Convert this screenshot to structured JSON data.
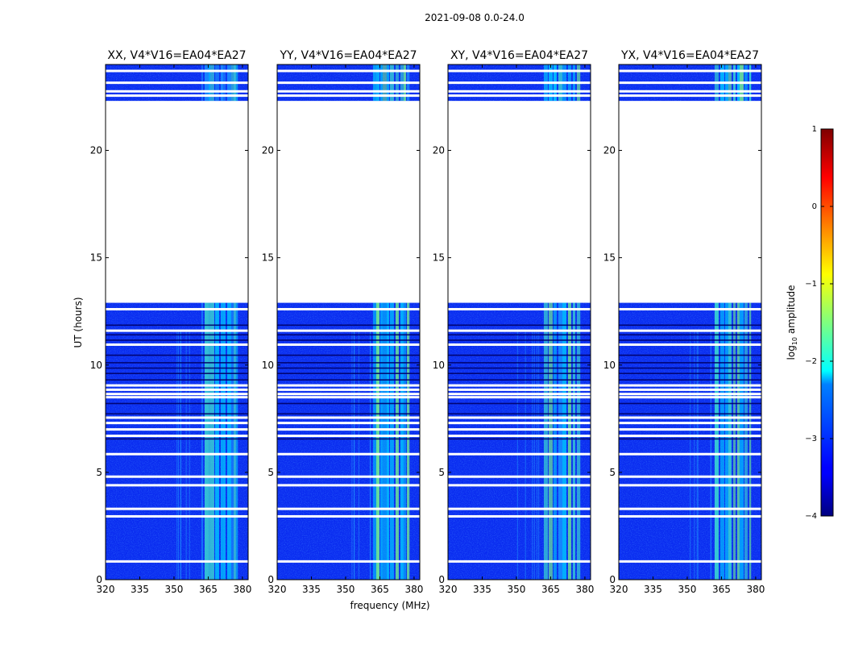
{
  "figure": {
    "suptitle": "2021-09-08 0.0-24.0",
    "xlabel": "frequency (MHz)",
    "ylabel": "UT (hours)"
  },
  "chart_data": {
    "type": "heatmap",
    "title": "2021-09-08 0.0-24.0",
    "xlabel": "frequency (MHz)",
    "ylabel": "UT (hours)",
    "xlim": [
      320,
      382.5
    ],
    "ylim": [
      0,
      24
    ],
    "xticks": [
      "320",
      "335",
      "350",
      "365",
      "380"
    ],
    "yticks": [
      "0",
      "5",
      "10",
      "15",
      "20"
    ],
    "rfi_band_mhz": [
      362,
      378
    ],
    "data_gap_hours": [
      12.9,
      22.3
    ],
    "panels": [
      {
        "title": "XX, V4*V16=EA04*EA27"
      },
      {
        "title": "YY, V4*V16=EA04*EA27"
      },
      {
        "title": "XY, V4*V16=EA04*EA27"
      },
      {
        "title": "YX, V4*V16=EA04*EA27"
      }
    ],
    "colorbar": {
      "label": "log10 amplitude",
      "label_main": "log",
      "label_sub": "10",
      "label_rest": " amplitude",
      "range": [
        -4,
        1
      ],
      "ticks": [
        "1",
        "0",
        "−1",
        "−2",
        "−3",
        "−4"
      ],
      "tick_values": [
        1,
        0,
        -1,
        -2,
        -3,
        -4
      ],
      "colormap": "jet"
    }
  }
}
